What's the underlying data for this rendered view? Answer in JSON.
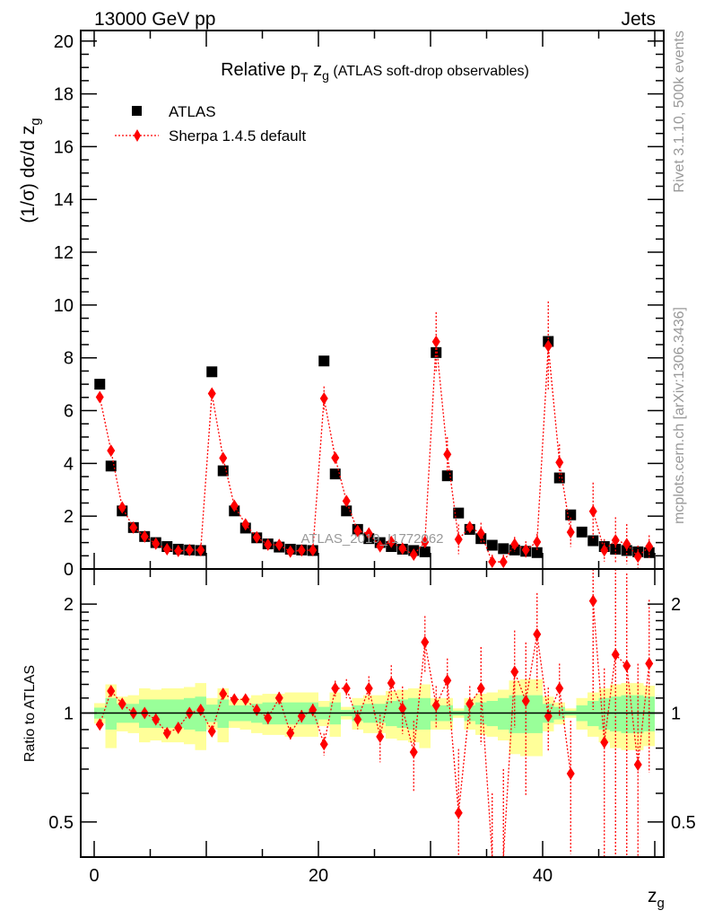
{
  "header": {
    "energy_label": "13000 GeV pp",
    "category_label": "Jets"
  },
  "side_text": {
    "rivet": "Rivet 3.1.10,  500k events",
    "mcplots": "mcplots.cern.ch [arXiv:1306.3436]"
  },
  "watermark": "ATLAS_2019_I1772062",
  "chart_data": [
    {
      "type": "scatter",
      "title_parts": {
        "a": "Relative p",
        "sub1": "T",
        "b": " z",
        "sub2": "g",
        "c": " (ATLAS soft-drop observables)"
      },
      "ylabel_parts": {
        "a": "(1/σ) dσ/d z",
        "sub": "g"
      },
      "xlim": [
        -1.2,
        50.8
      ],
      "ylim": [
        0,
        20.4
      ],
      "yticks": [
        "0",
        "2",
        "4",
        "6",
        "8",
        "10",
        "12",
        "14",
        "16",
        "18",
        "20"
      ],
      "legend": {
        "position": "top-left",
        "entries": [
          "ATLAS",
          "Sherpa 1.4.5 default"
        ]
      },
      "x": [
        0.5,
        1.5,
        2.5,
        3.5,
        4.5,
        5.5,
        6.5,
        7.5,
        8.5,
        9.5,
        10.5,
        11.5,
        12.5,
        13.5,
        14.5,
        15.5,
        16.5,
        17.5,
        18.5,
        19.5,
        20.5,
        21.5,
        22.5,
        23.5,
        24.5,
        25.5,
        26.5,
        27.5,
        28.5,
        29.5,
        30.5,
        31.5,
        32.5,
        33.5,
        34.5,
        35.5,
        36.5,
        37.5,
        38.5,
        39.5,
        40.5,
        41.5,
        42.5,
        43.5,
        44.5,
        45.5,
        46.5,
        47.5,
        48.5,
        49.5
      ],
      "series": [
        {
          "name": "ATLAS",
          "color": "#000000",
          "values": [
            7.0,
            3.9,
            2.2,
            1.57,
            1.23,
            1.0,
            0.85,
            0.75,
            0.72,
            0.7,
            7.47,
            3.72,
            2.2,
            1.55,
            1.18,
            0.95,
            0.83,
            0.75,
            0.72,
            0.7,
            7.88,
            3.6,
            2.2,
            1.5,
            1.15,
            1.0,
            0.85,
            0.75,
            0.7,
            0.65,
            8.2,
            3.53,
            2.12,
            1.5,
            1.15,
            0.9,
            0.77,
            0.72,
            0.67,
            0.62,
            8.62,
            3.45,
            2.05,
            1.4,
            1.07,
            0.85,
            0.75,
            0.7,
            0.65,
            0.62
          ]
        },
        {
          "name": "Sherpa 1.4.5 default",
          "color": "#ff0000",
          "ratio_to_atlas": [
            0.93,
            1.15,
            1.06,
            1.0,
            1.0,
            0.96,
            0.88,
            0.91,
            1.0,
            1.02,
            0.89,
            1.13,
            1.09,
            1.09,
            1.02,
            0.97,
            1.1,
            0.88,
            0.98,
            1.02,
            0.82,
            1.17,
            1.17,
            0.96,
            1.17,
            0.86,
            1.21,
            1.03,
            0.78,
            1.57,
            1.05,
            1.23,
            0.53,
            1.06,
            1.17,
            0.3,
            0.35,
            1.3,
            1.08,
            1.65,
            0.98,
            1.17,
            0.68,
            null,
            2.04,
            0.83,
            1.45,
            1.35,
            0.72,
            1.37
          ],
          "rel_err": [
            0.03,
            0.03,
            0.03,
            0.03,
            0.03,
            0.03,
            0.03,
            0.03,
            0.03,
            0.03,
            0.03,
            0.03,
            0.03,
            0.03,
            0.03,
            0.04,
            0.04,
            0.04,
            0.04,
            0.04,
            0.07,
            0.05,
            0.06,
            0.06,
            0.08,
            0.15,
            0.12,
            0.15,
            0.22,
            0.18,
            0.13,
            0.15,
            0.5,
            0.12,
            0.3,
            1.0,
            1.0,
            0.3,
            0.45,
            0.3,
            0.2,
            0.17,
            0.4,
            null,
            0.5,
            0.6,
            0.8,
            0.8,
            0.9,
            0.5
          ]
        }
      ]
    },
    {
      "type": "line",
      "ylabel": "Ratio to ATLAS",
      "xlabel_parts": {
        "a": "z",
        "sub": "g"
      },
      "yscale": "log",
      "ylim": [
        0.4,
        2.5
      ],
      "yticks": [
        "0.5",
        "1",
        "2"
      ],
      "xticks": [
        "0",
        "20",
        "40"
      ],
      "bands": {
        "green_color": "#99ff99",
        "yellow_color": "#ffff99",
        "green_rel": [
          0.035,
          0.1,
          0.06,
          0.06,
          0.09,
          0.09,
          0.09,
          0.09,
          0.1,
          0.11,
          0.055,
          0.09,
          0.05,
          0.05,
          0.06,
          0.07,
          0.07,
          0.07,
          0.07,
          0.07,
          0.04,
          0.07,
          0.02,
          0.05,
          0.06,
          0.06,
          0.08,
          0.09,
          0.1,
          0.1,
          0.05,
          0.05,
          0.015,
          0.05,
          0.07,
          0.08,
          0.1,
          0.12,
          0.12,
          0.12,
          0.06,
          0.04,
          0.015,
          0.05,
          0.08,
          0.1,
          0.11,
          0.12,
          0.12,
          0.11
        ],
        "yellow_rel": [
          0.065,
          0.2,
          0.11,
          0.12,
          0.17,
          0.16,
          0.17,
          0.17,
          0.18,
          0.21,
          0.1,
          0.17,
          0.09,
          0.1,
          0.12,
          0.13,
          0.13,
          0.14,
          0.14,
          0.14,
          0.08,
          0.14,
          0.04,
          0.1,
          0.12,
          0.12,
          0.15,
          0.16,
          0.17,
          0.2,
          0.1,
          0.1,
          0.03,
          0.1,
          0.13,
          0.14,
          0.16,
          0.23,
          0.24,
          0.24,
          0.11,
          0.07,
          0.03,
          0.1,
          0.14,
          0.17,
          0.2,
          0.21,
          0.21,
          0.19
        ]
      }
    }
  ]
}
